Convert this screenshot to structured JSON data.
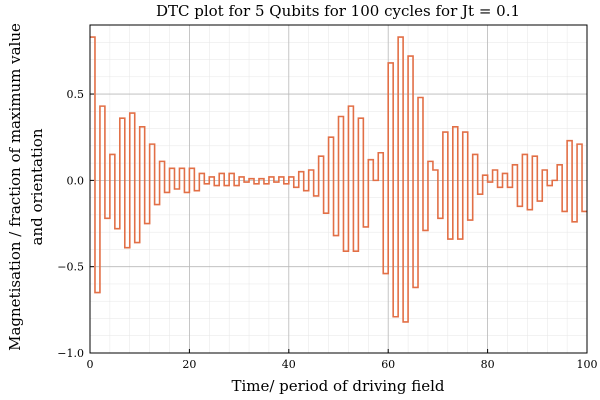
{
  "chart_data": {
    "type": "line",
    "title": "DTC plot for 5 Qubits for 100 cycles for Jt = 0.1",
    "xlabel": "Time/ period of driving field",
    "ylabel_line1": "Magnetisation / fraction of maximum value",
    "ylabel_line2": "and orientation",
    "xlim": [
      0,
      100
    ],
    "ylim": [
      -1.0,
      0.9
    ],
    "xticks": [
      0,
      20,
      40,
      60,
      80,
      100
    ],
    "xtick_labels": [
      "0",
      "20",
      "40",
      "60",
      "80",
      "100"
    ],
    "yticks": [
      -1.0,
      -0.5,
      0.0,
      0.5
    ],
    "ytick_labels": [
      "−1.0",
      "−0.5",
      "0.0",
      "0.5"
    ],
    "grid": true,
    "step": true,
    "color": "#e26f46",
    "series": [
      {
        "name": "",
        "x": [
          0,
          1,
          2,
          3,
          4,
          5,
          6,
          7,
          8,
          9,
          10,
          11,
          12,
          13,
          14,
          15,
          16,
          17,
          18,
          19,
          20,
          21,
          22,
          23,
          24,
          25,
          26,
          27,
          28,
          29,
          30,
          31,
          32,
          33,
          34,
          35,
          36,
          37,
          38,
          39,
          40,
          41,
          42,
          43,
          44,
          45,
          46,
          47,
          48,
          49,
          50,
          51,
          52,
          53,
          54,
          55,
          56,
          57,
          58,
          59,
          60,
          61,
          62,
          63,
          64,
          65,
          66,
          67,
          68,
          69,
          70,
          71,
          72,
          73,
          74,
          75,
          76,
          77,
          78,
          79,
          80,
          81,
          82,
          83,
          84,
          85,
          86,
          87,
          88,
          89,
          90,
          91,
          92,
          93,
          94,
          95,
          96,
          97,
          98,
          99
        ],
        "y": [
          0.83,
          -0.65,
          0.43,
          -0.22,
          0.15,
          -0.28,
          0.36,
          -0.39,
          0.39,
          -0.36,
          0.31,
          -0.25,
          0.21,
          -0.14,
          0.11,
          -0.07,
          0.07,
          -0.05,
          0.07,
          -0.07,
          0.07,
          -0.06,
          0.04,
          -0.02,
          0.02,
          -0.03,
          0.04,
          -0.03,
          0.04,
          -0.03,
          0.02,
          -0.01,
          0.01,
          -0.02,
          0.01,
          -0.02,
          0.02,
          -0.01,
          0.02,
          -0.02,
          0.02,
          -0.04,
          0.05,
          -0.06,
          0.06,
          -0.09,
          0.14,
          -0.19,
          0.25,
          -0.32,
          0.37,
          -0.41,
          0.43,
          -0.41,
          0.36,
          -0.27,
          0.12,
          0.0,
          0.16,
          -0.54,
          0.68,
          -0.79,
          0.83,
          -0.82,
          0.72,
          -0.62,
          0.48,
          -0.29,
          0.11,
          0.06,
          -0.22,
          0.28,
          -0.34,
          0.31,
          -0.34,
          0.28,
          -0.23,
          0.15,
          -0.08,
          0.03,
          -0.01,
          0.06,
          -0.04,
          0.04,
          -0.04,
          0.09,
          -0.15,
          0.15,
          -0.17,
          0.14,
          -0.12,
          0.06,
          -0.03,
          0.0,
          0.09,
          -0.18,
          0.23,
          -0.24,
          0.21,
          -0.18
        ]
      }
    ]
  }
}
